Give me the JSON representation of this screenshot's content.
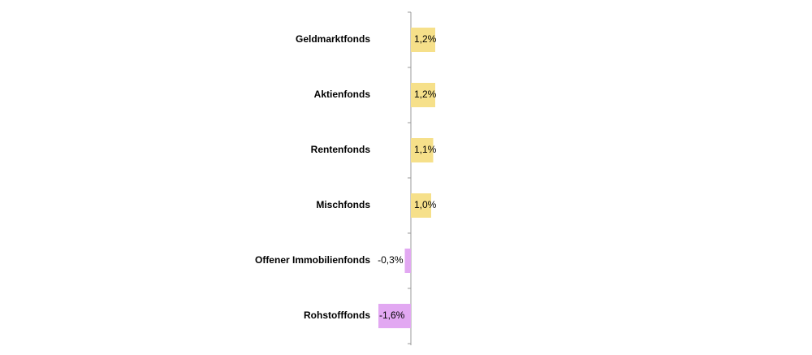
{
  "chart_data": {
    "type": "bar",
    "orientation": "horizontal",
    "categories": [
      "Geldmarktfonds",
      "Aktienfonds",
      "Rentenfonds",
      "Mischfonds",
      "Offener Immobilienfonds",
      "Rohstofffonds"
    ],
    "values": [
      1.2,
      1.2,
      1.1,
      1.0,
      -0.3,
      -1.6
    ],
    "value_labels": [
      "1,2%",
      "1,2%",
      "1,1%",
      "1,0%",
      "-0,3%",
      "-1,6%"
    ],
    "colors": [
      "#f6e08a",
      "#f6e08a",
      "#f6e08a",
      "#f6e08a",
      "#e2a8f2",
      "#e2a8f2"
    ]
  }
}
